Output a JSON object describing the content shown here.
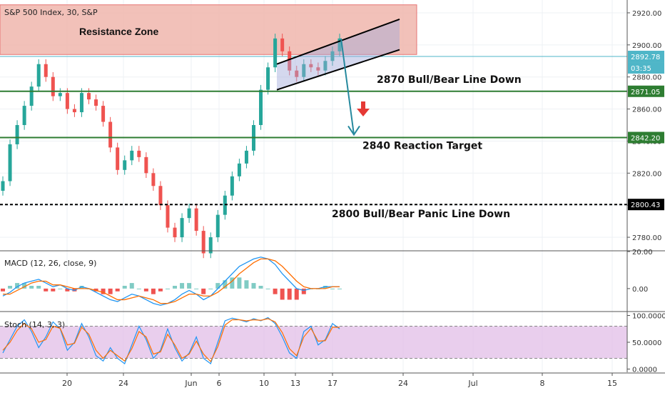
{
  "chart_data": [
    {
      "type": "candlestick",
      "title": "S&P 500 Index, 30, S&P",
      "ylim": [
        2772,
        2928
      ],
      "y_ticks": [
        "2920.00",
        "2900.00",
        "2880.00",
        "2860.00",
        "2840.00",
        "2820.00",
        "2800.00",
        "2780.00"
      ],
      "x_ticks": [
        "20",
        "24",
        "Jun",
        "6",
        "10",
        "13",
        "17",
        "24",
        "Jul",
        "8",
        "15"
      ],
      "price_labels": [
        {
          "text": "2892.78",
          "value": 2892.78,
          "color": "#4fb6c8"
        },
        {
          "text": "03:35",
          "value": 2886.2,
          "color": "#4fb6c8"
        },
        {
          "text": "2871.05",
          "value": 2871.05,
          "color": "#2e7d32"
        },
        {
          "text": "2842.20",
          "value": 2842.2,
          "color": "#2e7d32"
        },
        {
          "text": "2800.43",
          "value": 2800.43,
          "color": "#000000"
        }
      ],
      "resistance_zone": {
        "label": "Resistance Zone",
        "top": 2925,
        "bottom": 2894,
        "color": "#f0b6ad"
      },
      "levels": [
        {
          "label": "2870 Bull/Bear Line Down",
          "value": 2871.05,
          "color": "#2e7d32",
          "style": "solid"
        },
        {
          "label": "2840 Reaction Target",
          "value": 2842.2,
          "color": "#2e7d32",
          "style": "solid"
        },
        {
          "label": "2800 Bull/Bear Panic Line Down",
          "value": 2800.43,
          "color": "#000000",
          "style": "dashed"
        }
      ],
      "channel": {
        "lower_start": 2872,
        "lower_end": 2897,
        "upper_start": 2888,
        "upper_end": 2916
      },
      "forecast": {
        "from": 2904,
        "to": 2844
      },
      "down_arrow_color": "#e53935",
      "up_color": "#26a69a",
      "down_color": "#ef5350",
      "closes": [
        2815,
        2838,
        2850,
        2862,
        2874,
        2888,
        2880,
        2868,
        2870,
        2860,
        2858,
        2870,
        2866,
        2862,
        2852,
        2836,
        2822,
        2828,
        2834,
        2830,
        2820,
        2812,
        2800,
        2786,
        2780,
        2792,
        2798,
        2784,
        2770,
        2780,
        2794,
        2806,
        2818,
        2826,
        2834,
        2850,
        2872,
        2886,
        2904,
        2896,
        2884,
        2880,
        2888,
        2886,
        2884,
        2890,
        2896,
        2904
      ]
    },
    {
      "type": "line",
      "title": "MACD (12, 26, close, 9)",
      "ylim": [
        -12,
        20
      ],
      "y_ticks": [
        "20.00",
        "0.00"
      ],
      "series": [
        {
          "name": "MACD",
          "color": "#2196f3",
          "values": [
            -4,
            -2,
            1,
            3,
            4,
            5,
            3,
            1,
            2,
            0,
            -1,
            1,
            0,
            -2,
            -4,
            -6,
            -7,
            -5,
            -3,
            -4,
            -6,
            -8,
            -9,
            -8,
            -6,
            -3,
            -1,
            -3,
            -6,
            -4,
            0,
            4,
            8,
            12,
            14,
            16,
            17,
            16,
            13,
            8,
            4,
            0,
            -1,
            0,
            0,
            1,
            1,
            1
          ]
        },
        {
          "name": "Signal",
          "color": "#ff6d00",
          "values": [
            -3,
            -3,
            -1,
            1,
            3,
            4,
            4,
            2,
            2,
            1,
            0,
            0,
            0,
            -1,
            -2,
            -4,
            -6,
            -6,
            -5,
            -4,
            -5,
            -6,
            -8,
            -8,
            -7,
            -5,
            -3,
            -3,
            -4,
            -4,
            -2,
            1,
            4,
            8,
            11,
            14,
            16,
            16,
            15,
            12,
            8,
            4,
            1,
            0,
            0,
            0,
            1,
            1
          ]
        }
      ]
    },
    {
      "type": "line",
      "title": "Stoch (14, 3, 3)",
      "ylim": [
        -6,
        106
      ],
      "y_ticks": [
        "100.0000",
        "50.0000",
        "0.0000"
      ],
      "band": [
        20,
        80
      ],
      "series": [
        {
          "name": "%K",
          "color": "#2196f3",
          "values": [
            30,
            55,
            80,
            92,
            70,
            40,
            60,
            88,
            75,
            35,
            50,
            85,
            60,
            25,
            15,
            40,
            20,
            10,
            45,
            80,
            55,
            20,
            35,
            75,
            40,
            15,
            30,
            60,
            20,
            10,
            50,
            90,
            95,
            92,
            88,
            94,
            90,
            96,
            85,
            60,
            30,
            20,
            70,
            80,
            45,
            55,
            85,
            75
          ]
        },
        {
          "name": "%D",
          "color": "#ff6d00",
          "values": [
            35,
            50,
            72,
            85,
            75,
            50,
            55,
            80,
            76,
            45,
            48,
            78,
            65,
            35,
            20,
            35,
            25,
            15,
            38,
            70,
            60,
            28,
            32,
            65,
            45,
            20,
            28,
            52,
            28,
            14,
            42,
            82,
            92,
            92,
            90,
            92,
            91,
            94,
            88,
            68,
            38,
            25,
            60,
            76,
            52,
            53,
            78,
            78
          ]
        }
      ]
    }
  ]
}
